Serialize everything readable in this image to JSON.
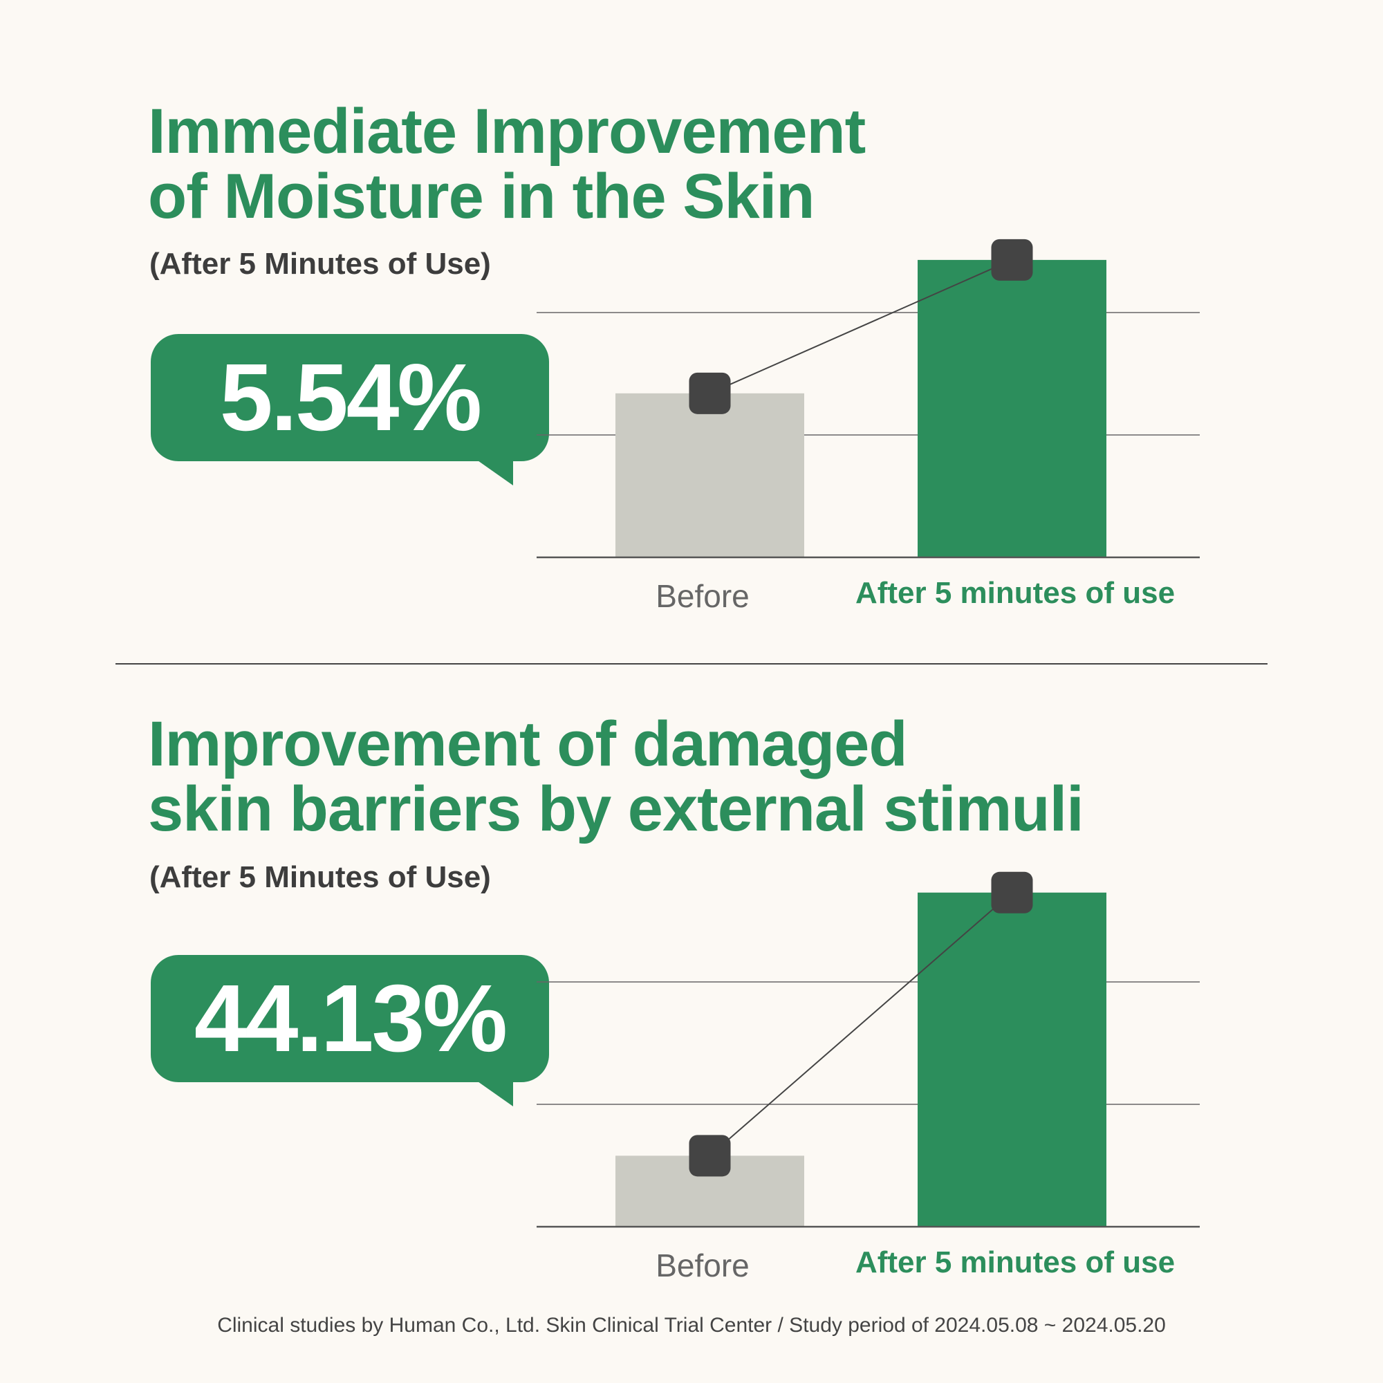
{
  "section1": {
    "title_line1": "Immediate Improvement",
    "title_line2": "of Moisture in the Skin",
    "subtitle": "(After 5 Minutes of Use)",
    "callout": "5.54%"
  },
  "section2": {
    "title_line1": "Improvement of damaged",
    "title_line2": "skin barriers by external stimuli",
    "subtitle": "(After 5 Minutes of Use)",
    "callout": "44.13%"
  },
  "footer": "Clinical studies by Human Co., Ltd. Skin Clinical Trial Center / Study period of 2024.05.08 ~ 2024.05.20",
  "colors": {
    "accent": "#2c8e5c",
    "before_bar": "#cbcbc3",
    "marker": "#444444",
    "background": "#fcf9f4"
  },
  "chart_data": [
    {
      "type": "bar",
      "categories": [
        "Before",
        "After 5 minutes of use"
      ],
      "values": [
        1.34,
        2.43
      ],
      "value_note": "relative levels in gridline units (axis unlabeled)",
      "ylim": [
        0,
        3
      ],
      "grid": true,
      "overlay": "line connecting bar tops with square markers"
    },
    {
      "type": "bar",
      "categories": [
        "Before",
        "After 5 minutes of use"
      ],
      "values": [
        0.58,
        2.73
      ],
      "value_note": "relative levels in gridline units (axis unlabeled)",
      "ylim": [
        0,
        3
      ],
      "grid": true,
      "overlay": "line connecting bar tops with square markers"
    }
  ]
}
